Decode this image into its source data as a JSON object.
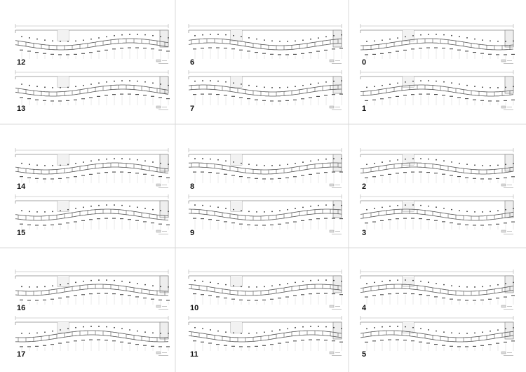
{
  "panels": [
    {
      "label": "0"
    },
    {
      "label": "1"
    },
    {
      "label": "2"
    },
    {
      "label": "3"
    },
    {
      "label": "4"
    },
    {
      "label": "5"
    },
    {
      "label": "6"
    },
    {
      "label": "7"
    },
    {
      "label": "8"
    },
    {
      "label": "9"
    },
    {
      "label": "10"
    },
    {
      "label": "11"
    },
    {
      "label": "12"
    },
    {
      "label": "13"
    },
    {
      "label": "14"
    },
    {
      "label": "15"
    },
    {
      "label": "16"
    },
    {
      "label": "17"
    }
  ]
}
